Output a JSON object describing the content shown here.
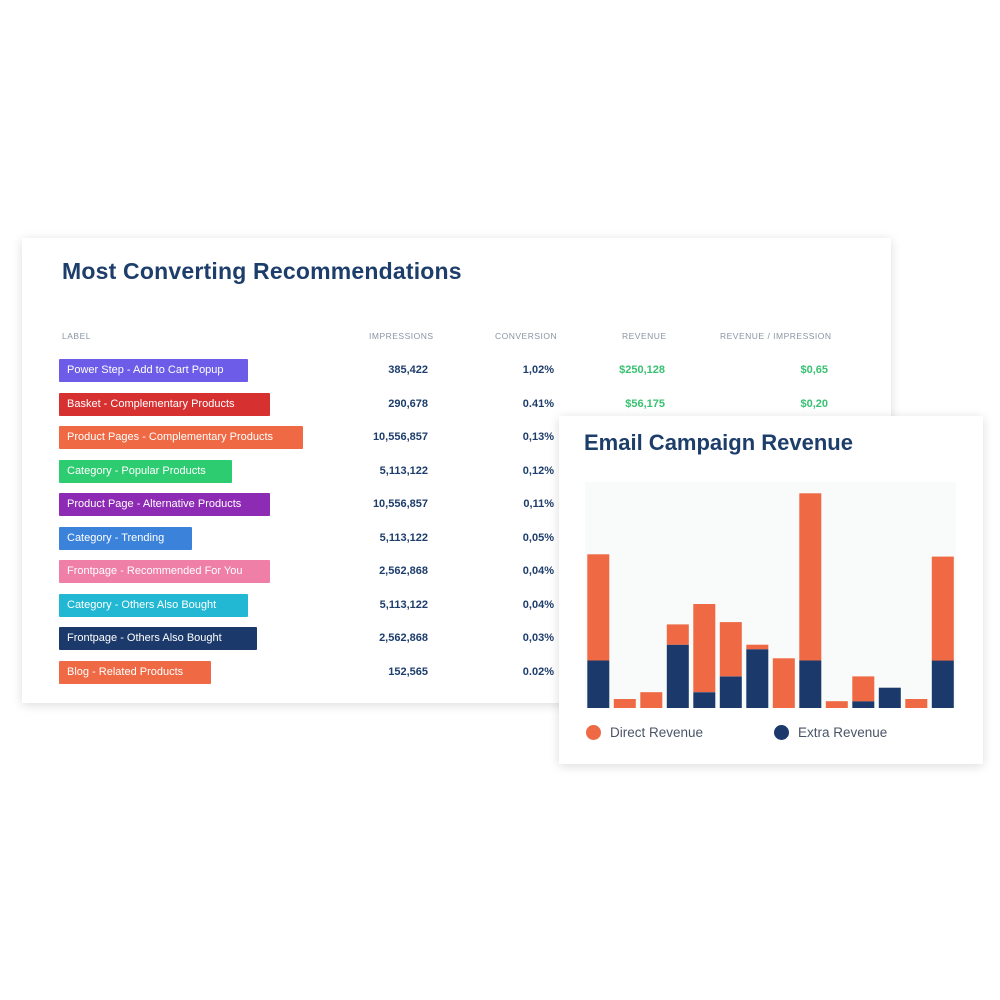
{
  "table": {
    "title": "Most Converting Recommendations",
    "headers": {
      "label": "LABEL",
      "impressions": "IMPRESSIONS",
      "conversion": "CONVERSION",
      "revenue": "REVENUE",
      "revenue_per_impression": "REVENUE / IMPRESSION"
    },
    "rows": [
      {
        "label": "Power Step - Add to Cart Popup",
        "color": "#6c5ce7",
        "impressions": "385,422",
        "conversion": "1,02%",
        "revenue": "$250,128",
        "rpi": "$0,65"
      },
      {
        "label": "Basket - Complementary Products",
        "color": "#d63031",
        "impressions": "290,678",
        "conversion": "0.41%",
        "revenue": "$56,175",
        "rpi": "$0,20"
      },
      {
        "label": "Product Pages - Complementary Products",
        "color": "#ee6944",
        "impressions": "10,556,857",
        "conversion": "0,13%"
      },
      {
        "label": "Category - Popular Products",
        "color": "#2ecc71",
        "impressions": "5,113,122",
        "conversion": "0,12%"
      },
      {
        "label": "Product Page - Alternative Products",
        "color": "#8e2bb5",
        "impressions": "10,556,857",
        "conversion": "0,11%"
      },
      {
        "label": "Category - Trending",
        "color": "#3b82db",
        "impressions": "5,113,122",
        "conversion": "0,05%"
      },
      {
        "label": "Frontpage - Recommended For You",
        "color": "#ef7fa6",
        "impressions": "2,562,868",
        "conversion": "0,04%"
      },
      {
        "label": "Category - Others Also Bought",
        "color": "#22b8d4",
        "impressions": "5,113,122",
        "conversion": "0,04%"
      },
      {
        "label": "Frontpage - Others Also Bought",
        "color": "#1b3a6b",
        "impressions": "2,562,868",
        "conversion": "0,03%"
      },
      {
        "label": "Blog - Related Products",
        "color": "#ee6944",
        "impressions": "152,565",
        "conversion": "0.02%"
      }
    ]
  },
  "chart": {
    "title": "Email Campaign Revenue",
    "colors": {
      "direct": "#ee6944",
      "extra": "#1b3a6b",
      "plot_bg": "#f9fafa"
    },
    "legend": {
      "direct": "Direct Revenue",
      "extra": "Extra Revenue"
    }
  },
  "chart_data": {
    "type": "bar",
    "stacked": true,
    "ylim": [
      0,
      100
    ],
    "grid": false,
    "legend_position": "bottom",
    "series": [
      {
        "name": "Extra Revenue",
        "values": [
          21,
          0,
          0,
          28,
          7,
          14,
          26,
          0,
          21,
          0,
          3,
          9,
          0,
          21
        ]
      },
      {
        "name": "Direct Revenue",
        "values": [
          47,
          4,
          7,
          9,
          39,
          24,
          2,
          22,
          74,
          3,
          11,
          0,
          4,
          46
        ]
      }
    ]
  }
}
